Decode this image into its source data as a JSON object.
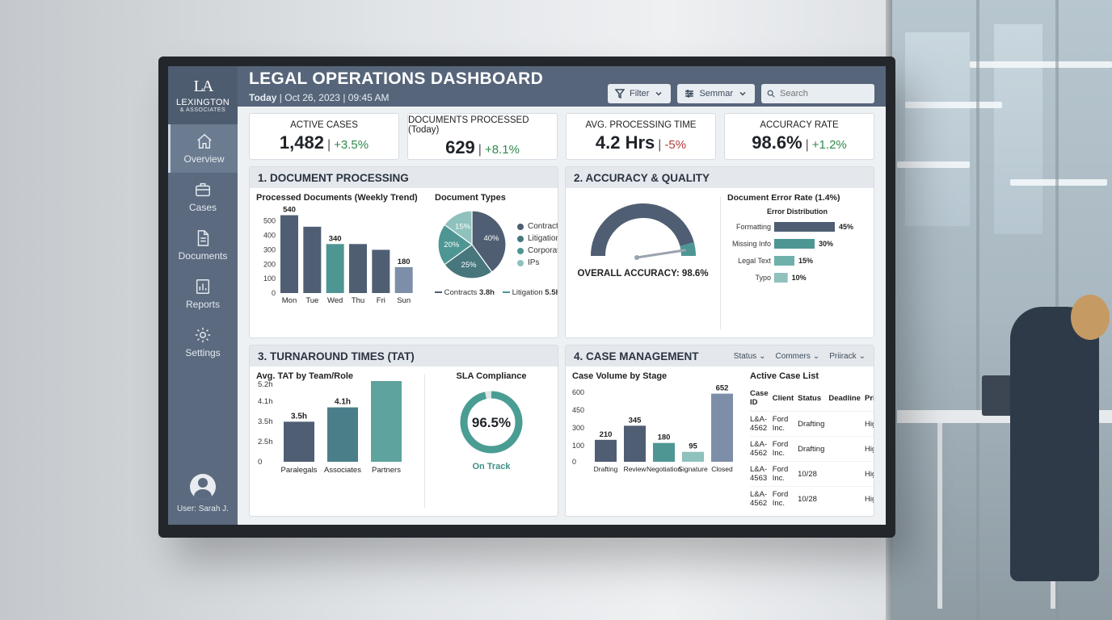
{
  "sidebar": {
    "logo_mark": "LA",
    "logo_name": "LEXINGTON",
    "logo_sub": "& ASSOCIATES",
    "items": [
      {
        "label": "Overview",
        "icon": "home-icon"
      },
      {
        "label": "Cases",
        "icon": "briefcase-icon"
      },
      {
        "label": "Documents",
        "icon": "document-icon"
      },
      {
        "label": "Reports",
        "icon": "report-icon"
      },
      {
        "label": "Settings",
        "icon": "gear-icon"
      }
    ],
    "user": "User: Sarah J."
  },
  "header": {
    "title": "LEGAL OPERATIONS DASHBOARD",
    "today_label": "Today",
    "date": "Oct 26, 2023",
    "time": "09:45 AM",
    "filter_label": "Filter",
    "seminar_label": "Semmar",
    "search_placeholder": "Search"
  },
  "kpis": [
    {
      "label": "ACTIVE CASES",
      "value": "1,482",
      "change": "+3.5%",
      "trend": "up"
    },
    {
      "label": "DOCUMENTS PROCESSED (Today)",
      "value": "629",
      "change": "+8.1%",
      "trend": "up"
    },
    {
      "label": "AVG. PROCESSING TIME",
      "value": "4.2 Hrs",
      "change": "-5%",
      "trend": "down"
    },
    {
      "label": "ACCURACY RATE",
      "value": "98.6%",
      "change": "+1.2%",
      "trend": "up"
    }
  ],
  "panels": {
    "doc_processing": {
      "title": "1. DOCUMENT PROCESSING",
      "weekly_title": "Processed Documents (Weekly Trend)",
      "types_title": "Document Types",
      "footer_a_label": "Contracts",
      "footer_a_value": "3.8h",
      "footer_b_label": "Litigation",
      "footer_b_value": "5.5h"
    },
    "accuracy": {
      "title": "2. ACCURACY & QUALITY",
      "overall_label": "OVERALL ACCURACY: 98.6%",
      "error_title": "Document Error Rate (1.4%)",
      "dist_title": "Error Distribution"
    },
    "tat": {
      "title": "3. TURNAROUND TIMES (TAT)",
      "bar_title": "Avg. TAT by Team/Role",
      "sla_title": "SLA Compliance",
      "sla_value": "96.5%",
      "sla_status": "On Track"
    },
    "cases": {
      "title": "4. CASE MANAGEMENT",
      "filters": [
        "Status",
        "Commers",
        "Priirack"
      ],
      "volume_title": "Case Volume by Stage",
      "list_title": "Active Case List",
      "columns": [
        "Case ID",
        "Client",
        "Status",
        "Deadline",
        "Priority"
      ],
      "rows": [
        {
          "id": "L&A-4562",
          "client": "Ford Inc.",
          "status": "Drafting",
          "deadline": "",
          "priority": "High"
        },
        {
          "id": "L&A-4562",
          "client": "Ford Inc.",
          "status": "Drafting",
          "deadline": "",
          "priority": "High"
        },
        {
          "id": "L&A-4563",
          "client": "Ford Inc.",
          "status": "10/28",
          "deadline": "",
          "priority": "High"
        },
        {
          "id": "L&A-4562",
          "client": "Ford Inc.",
          "status": "10/28",
          "deadline": "",
          "priority": "High"
        }
      ]
    }
  },
  "colors": {
    "navy": "#4f5e73",
    "teal": "#4e9694",
    "light_teal": "#8fc1bd",
    "slate": "#7d8fa8"
  },
  "chart_data": [
    {
      "type": "bar",
      "title": "Processed Documents (Weekly Trend)",
      "categories": [
        "Mon",
        "Tue",
        "Wed",
        "Thu",
        "Fri",
        "Sun"
      ],
      "values": [
        540,
        460,
        340,
        340,
        300,
        180
      ],
      "data_labels": [
        "540",
        "",
        "340",
        "",
        "",
        "180"
      ],
      "yticks": [
        0,
        100,
        200,
        300,
        400,
        500
      ],
      "ylim": [
        0,
        560
      ]
    },
    {
      "type": "pie",
      "title": "Document Types",
      "slices": [
        {
          "label": "Contracts",
          "value": 40,
          "text": "40%"
        },
        {
          "label": "Litigation",
          "value": 25,
          "text": "25%"
        },
        {
          "label": "Corporate",
          "value": 20,
          "text": "20%"
        },
        {
          "label": "IPs",
          "value": 15,
          "text": "15%"
        }
      ]
    },
    {
      "type": "gauge",
      "value": 98.6,
      "max": 100
    },
    {
      "type": "bar",
      "orientation": "horizontal",
      "title": "Error Distribution",
      "categories": [
        "Formatting",
        "Missing Info",
        "Legal Text",
        "Typo"
      ],
      "values": [
        45,
        30,
        15,
        10
      ],
      "data_labels": [
        "45%",
        "30%",
        "15%",
        "10%"
      ]
    },
    {
      "type": "bar",
      "title": "Avg. TAT by Team/Role",
      "categories": [
        "Paralegals",
        "Associates",
        "Partners"
      ],
      "values": [
        3.5,
        4.1,
        5.2
      ],
      "data_labels": [
        "3.5h",
        "4.1h",
        "5.2h"
      ],
      "yticks": [
        "0",
        "2.5h",
        "3.5h",
        "4.1h",
        "5.2h"
      ]
    },
    {
      "type": "donut",
      "title": "SLA Compliance",
      "value": 96.5
    },
    {
      "type": "bar",
      "title": "Case Volume by Stage",
      "categories": [
        "Drafting",
        "Review",
        "Negotiation",
        "Signature",
        "Closed"
      ],
      "values": [
        210,
        345,
        180,
        95,
        652
      ],
      "data_labels": [
        "210",
        "345",
        "180",
        "95",
        "652"
      ],
      "yticks": [
        0,
        100,
        300,
        450,
        600
      ],
      "ylim": [
        0,
        680
      ]
    }
  ]
}
